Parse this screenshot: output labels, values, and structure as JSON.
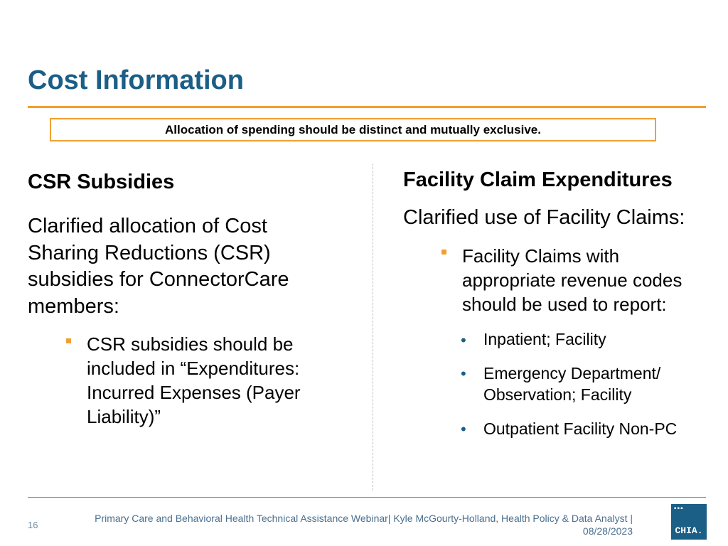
{
  "slide": {
    "title": "Cost Information",
    "callout": "Allocation of spending should be distinct and mutually exclusive."
  },
  "left": {
    "heading": "CSR Subsidies",
    "body": [
      "Clarified allocation of Cost",
      "Sharing Reductions (CSR)",
      "subsidies for ConnectorCare",
      "members:"
    ],
    "bullet": [
      "CSR subsidies should be",
      "included in “Expenditures:",
      "Incurred Expenses (Payer",
      "Liability)”"
    ]
  },
  "right": {
    "heading": "Facility Claim Expenditures",
    "body": "Clarified use of Facility Claims:",
    "bullet": [
      "Facility Claims with",
      "appropriate revenue codes",
      "should be used to report:"
    ],
    "sub_bullets": [
      [
        "Inpatient; Facility"
      ],
      [
        "Emergency Department/",
        "Observation; Facility"
      ],
      [
        "Outpatient Facility Non-PC"
      ]
    ],
    "bullet_glyph": "•"
  },
  "footer": {
    "page_number": "16",
    "line1": "Primary Care and Behavioral Health Technical Assistance Webinar|  Kyle McGourty-Holland, Health Policy & Data Analyst  |",
    "line2": "08/28/2023",
    "logo_dots": "▪▪▪",
    "logo_text": "CHIA."
  },
  "colors": {
    "title_blue": "#1b5e86",
    "accent_orange": "#f0a030"
  }
}
